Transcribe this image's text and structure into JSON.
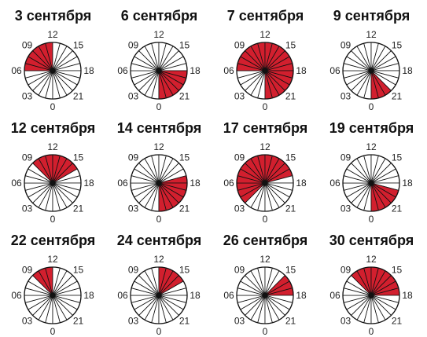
{
  "chart_data": [
    {
      "type": "pie",
      "title": "3 сентября",
      "active_hours": [
        6,
        7,
        8,
        9,
        10,
        11
      ]
    },
    {
      "type": "pie",
      "title": "6 сентября",
      "active_hours": [
        18,
        19,
        20,
        21,
        22,
        23
      ]
    },
    {
      "type": "pie",
      "title": "7 сентября",
      "active_hours": [
        6,
        7,
        8,
        9,
        10,
        11,
        12,
        13,
        14,
        15,
        16,
        17,
        18,
        19,
        20,
        21,
        22,
        23
      ]
    },
    {
      "type": "pie",
      "title": "9 сентября",
      "active_hours": [
        21,
        22,
        23
      ]
    },
    {
      "type": "pie",
      "title": "12 сентября",
      "active_hours": [
        9,
        10,
        11,
        12,
        13,
        14,
        15
      ]
    },
    {
      "type": "pie",
      "title": "14 сентября",
      "active_hours": [
        17,
        18,
        19,
        20,
        21,
        22,
        23
      ]
    },
    {
      "type": "pie",
      "title": "17 сентября",
      "active_hours": [
        3,
        4,
        5,
        6,
        7,
        8,
        9,
        10,
        11,
        12,
        13,
        14,
        15,
        16
      ]
    },
    {
      "type": "pie",
      "title": "19 сентября",
      "active_hours": [
        19,
        20,
        21,
        22,
        23
      ]
    },
    {
      "type": "pie",
      "title": "22 сентября",
      "active_hours": [
        9,
        10,
        11
      ]
    },
    {
      "type": "pie",
      "title": "24 сентября",
      "active_hours": [
        12,
        13,
        14,
        15
      ]
    },
    {
      "type": "pie",
      "title": "26 сентября",
      "active_hours": [
        15,
        16,
        17
      ]
    },
    {
      "type": "pie",
      "title": "30 сентября",
      "active_hours": [
        9,
        10,
        11,
        12,
        13,
        14,
        15,
        16,
        17
      ]
    }
  ],
  "hour_labels": [
    "12",
    "15",
    "18",
    "21",
    "0",
    "03",
    "06",
    "09"
  ],
  "colors": {
    "active": "#d21f2e",
    "inactive": "#ffffff",
    "stroke": "#111111"
  }
}
